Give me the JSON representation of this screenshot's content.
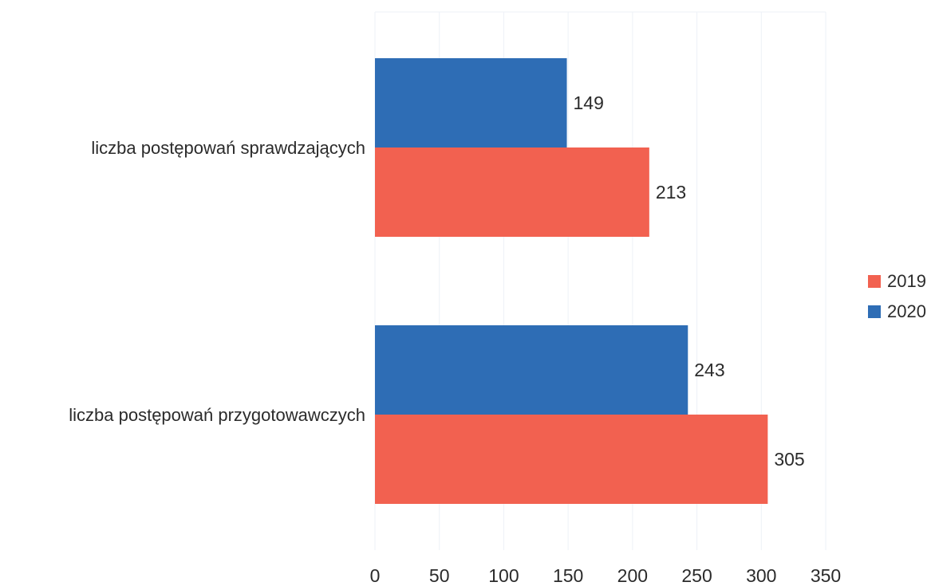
{
  "chart_data": {
    "type": "bar",
    "orientation": "horizontal",
    "categories": [
      "liczba postępowań sprawdzających",
      "liczba postępowań przygotowawczych"
    ],
    "series": [
      {
        "name": "2020",
        "color": "#2e6db5",
        "values": [
          149,
          243
        ]
      },
      {
        "name": "2019",
        "color": "#f26150",
        "values": [
          213,
          305
        ]
      }
    ],
    "legend_order": [
      "2019",
      "2020"
    ],
    "legend_position": "right",
    "xlim": [
      0,
      350
    ],
    "xticks": [
      0,
      50,
      100,
      150,
      200,
      250,
      300,
      350
    ],
    "grid": true,
    "title": "",
    "xlabel": "",
    "ylabel": ""
  }
}
